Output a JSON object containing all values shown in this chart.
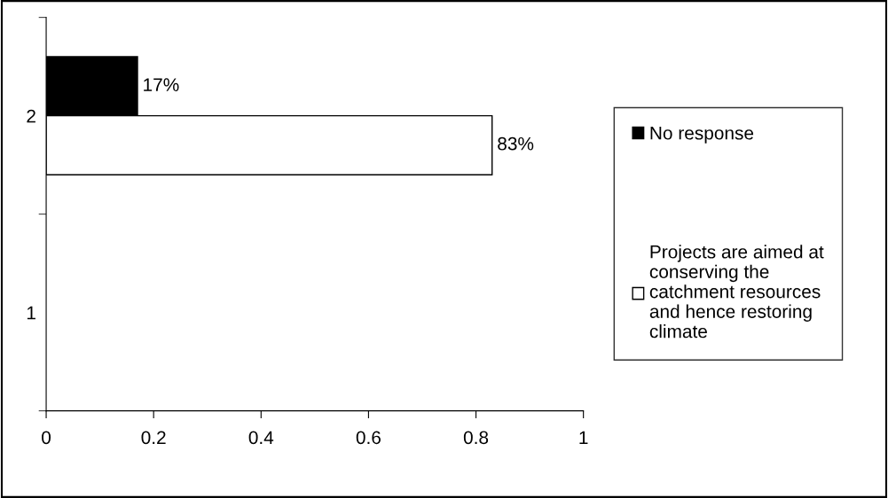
{
  "chart_data": {
    "type": "bar",
    "orientation": "horizontal",
    "categories": [
      "2",
      "1"
    ],
    "series": [
      {
        "name": "No response",
        "color": "#000000",
        "values": [
          0.17,
          null
        ],
        "value_labels": [
          "17%",
          null
        ]
      },
      {
        "name": "Projects are aimed at conserving the catchment resources and hence restoring climate",
        "color": "#ffffff",
        "values": [
          0.83,
          null
        ],
        "value_labels": [
          "83%",
          null
        ]
      }
    ],
    "xlim": [
      0,
      1
    ],
    "xticks": [
      0,
      0.2,
      0.4,
      0.6,
      0.8,
      1
    ],
    "grid": false,
    "legend": "right"
  }
}
